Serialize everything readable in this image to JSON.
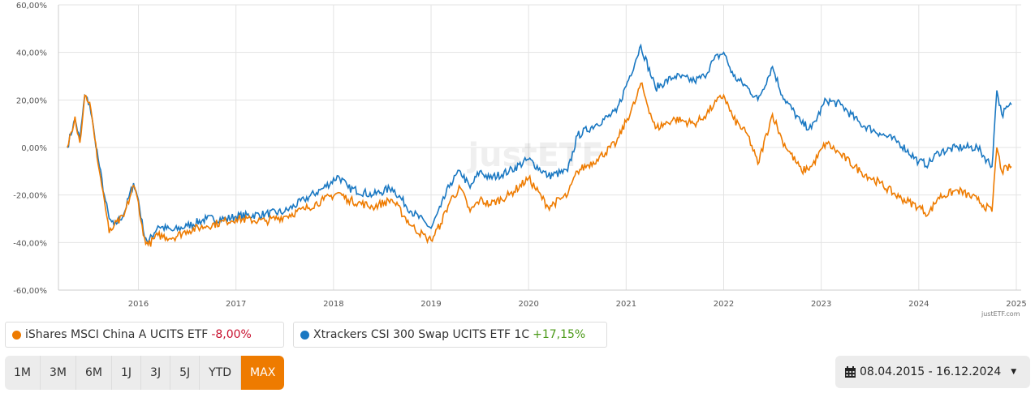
{
  "chart_data": {
    "type": "line",
    "ylim": [
      -60,
      60
    ],
    "yticks": [
      "60,00%",
      "40,00%",
      "20,00%",
      "0,00%",
      "-20,00%",
      "-40,00%",
      "-60,00%"
    ],
    "ytick_values": [
      60,
      40,
      20,
      0,
      -20,
      -40,
      -60
    ],
    "xticks": [
      "2016",
      "2017",
      "2018",
      "2019",
      "2020",
      "2021",
      "2022",
      "2023",
      "2024",
      "2025"
    ],
    "xlim": [
      2015.18,
      2025.05
    ],
    "grid": true,
    "series": [
      {
        "name": "iShares MSCI China A UCITS ETF",
        "color": "#ee7b00",
        "change": "-8,00%",
        "points": [
          [
            2015.27,
            0
          ],
          [
            2015.35,
            13
          ],
          [
            2015.4,
            2
          ],
          [
            2015.45,
            22
          ],
          [
            2015.5,
            19
          ],
          [
            2015.55,
            4
          ],
          [
            2015.6,
            -10
          ],
          [
            2015.65,
            -22
          ],
          [
            2015.7,
            -36
          ],
          [
            2015.75,
            -33
          ],
          [
            2015.85,
            -29
          ],
          [
            2015.95,
            -16
          ],
          [
            2016.0,
            -23
          ],
          [
            2016.05,
            -37
          ],
          [
            2016.1,
            -41
          ],
          [
            2016.2,
            -37
          ],
          [
            2016.35,
            -38
          ],
          [
            2016.5,
            -35
          ],
          [
            2016.7,
            -33
          ],
          [
            2016.9,
            -31
          ],
          [
            2017.0,
            -30
          ],
          [
            2017.3,
            -31
          ],
          [
            2017.5,
            -29
          ],
          [
            2017.7,
            -26
          ],
          [
            2017.9,
            -22
          ],
          [
            2018.05,
            -19
          ],
          [
            2018.15,
            -22
          ],
          [
            2018.4,
            -25
          ],
          [
            2018.6,
            -22
          ],
          [
            2018.8,
            -33
          ],
          [
            2018.95,
            -38
          ],
          [
            2019.0,
            -39
          ],
          [
            2019.1,
            -32
          ],
          [
            2019.2,
            -22
          ],
          [
            2019.3,
            -17
          ],
          [
            2019.4,
            -27
          ],
          [
            2019.5,
            -22
          ],
          [
            2019.6,
            -24
          ],
          [
            2019.8,
            -20
          ],
          [
            2020.0,
            -13
          ],
          [
            2020.2,
            -25
          ],
          [
            2020.4,
            -20
          ],
          [
            2020.5,
            -10
          ],
          [
            2020.7,
            -5
          ],
          [
            2020.9,
            2
          ],
          [
            2021.1,
            20
          ],
          [
            2021.15,
            27
          ],
          [
            2021.3,
            8
          ],
          [
            2021.5,
            12
          ],
          [
            2021.7,
            10
          ],
          [
            2021.8,
            13
          ],
          [
            2021.9,
            18
          ],
          [
            2022.0,
            22
          ],
          [
            2022.1,
            12
          ],
          [
            2022.25,
            5
          ],
          [
            2022.35,
            -7
          ],
          [
            2022.5,
            14
          ],
          [
            2022.6,
            3
          ],
          [
            2022.8,
            -10
          ],
          [
            2022.9,
            -8
          ],
          [
            2023.05,
            2
          ],
          [
            2023.2,
            -3
          ],
          [
            2023.4,
            -10
          ],
          [
            2023.6,
            -15
          ],
          [
            2023.8,
            -21
          ],
          [
            2024.0,
            -25
          ],
          [
            2024.1,
            -28
          ],
          [
            2024.2,
            -21
          ],
          [
            2024.4,
            -18
          ],
          [
            2024.6,
            -22
          ],
          [
            2024.75,
            -27
          ],
          [
            2024.77,
            -15
          ],
          [
            2024.8,
            0
          ],
          [
            2024.85,
            -10
          ],
          [
            2024.95,
            -8
          ]
        ]
      },
      {
        "name": "Xtrackers CSI 300 Swap UCITS ETF 1C",
        "color": "#1a78c2",
        "change": "+17,15%",
        "points": [
          [
            2015.27,
            0
          ],
          [
            2015.35,
            12
          ],
          [
            2015.4,
            3
          ],
          [
            2015.45,
            22
          ],
          [
            2015.5,
            18
          ],
          [
            2015.55,
            5
          ],
          [
            2015.6,
            -8
          ],
          [
            2015.65,
            -20
          ],
          [
            2015.7,
            -30
          ],
          [
            2015.75,
            -33
          ],
          [
            2015.85,
            -28
          ],
          [
            2015.95,
            -15
          ],
          [
            2016.0,
            -22
          ],
          [
            2016.05,
            -35
          ],
          [
            2016.1,
            -40
          ],
          [
            2016.2,
            -33
          ],
          [
            2016.35,
            -35
          ],
          [
            2016.5,
            -33
          ],
          [
            2016.7,
            -30
          ],
          [
            2016.9,
            -30
          ],
          [
            2017.0,
            -29
          ],
          [
            2017.3,
            -28
          ],
          [
            2017.5,
            -27
          ],
          [
            2017.7,
            -22
          ],
          [
            2017.9,
            -17
          ],
          [
            2018.05,
            -12
          ],
          [
            2018.15,
            -17
          ],
          [
            2018.4,
            -20
          ],
          [
            2018.6,
            -17
          ],
          [
            2018.8,
            -27
          ],
          [
            2018.95,
            -32
          ],
          [
            2019.0,
            -34
          ],
          [
            2019.1,
            -25
          ],
          [
            2019.2,
            -15
          ],
          [
            2019.3,
            -10
          ],
          [
            2019.4,
            -17
          ],
          [
            2019.5,
            -10
          ],
          [
            2019.6,
            -13
          ],
          [
            2019.8,
            -10
          ],
          [
            2020.0,
            -5
          ],
          [
            2020.2,
            -12
          ],
          [
            2020.4,
            -10
          ],
          [
            2020.5,
            5
          ],
          [
            2020.7,
            10
          ],
          [
            2020.9,
            15
          ],
          [
            2021.1,
            37
          ],
          [
            2021.15,
            43
          ],
          [
            2021.3,
            25
          ],
          [
            2021.5,
            30
          ],
          [
            2021.7,
            28
          ],
          [
            2021.8,
            30
          ],
          [
            2021.9,
            37
          ],
          [
            2022.0,
            40
          ],
          [
            2022.1,
            30
          ],
          [
            2022.25,
            25
          ],
          [
            2022.35,
            20
          ],
          [
            2022.5,
            34
          ],
          [
            2022.6,
            22
          ],
          [
            2022.8,
            10
          ],
          [
            2022.9,
            8
          ],
          [
            2023.05,
            20
          ],
          [
            2023.2,
            18
          ],
          [
            2023.4,
            10
          ],
          [
            2023.6,
            6
          ],
          [
            2023.8,
            2
          ],
          [
            2024.0,
            -6
          ],
          [
            2024.1,
            -7
          ],
          [
            2024.2,
            -2
          ],
          [
            2024.4,
            0
          ],
          [
            2024.6,
            0
          ],
          [
            2024.75,
            -8
          ],
          [
            2024.77,
            5
          ],
          [
            2024.8,
            24
          ],
          [
            2024.85,
            14
          ],
          [
            2024.95,
            18
          ]
        ]
      }
    ]
  },
  "watermark": "justETF",
  "credit": "justETF.com",
  "ranges": {
    "items": [
      "1M",
      "3M",
      "6M",
      "1J",
      "3J",
      "5J",
      "YTD",
      "MAX"
    ],
    "active": "MAX"
  },
  "date_range": "08.04.2015 - 16.12.2024"
}
